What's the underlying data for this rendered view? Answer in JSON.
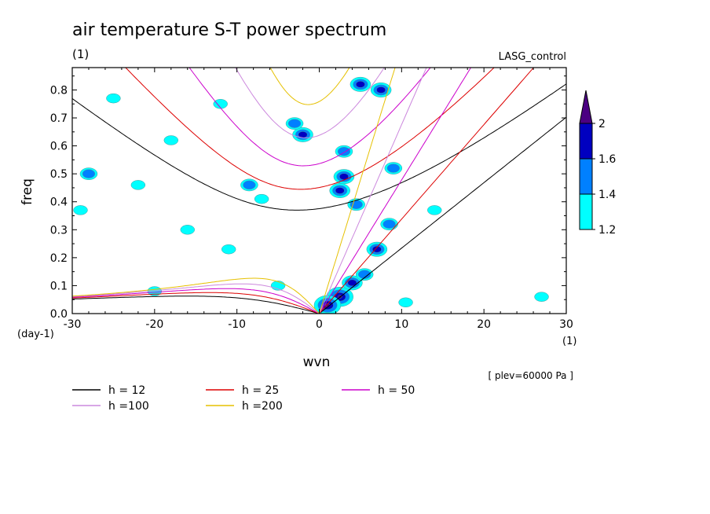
{
  "chart_data": {
    "type": "contour",
    "title": "air temperature S-T power spectrum",
    "units_label": "(1)",
    "run_label": "LASG_control",
    "xlabel": "wvn",
    "ylabel": "freq",
    "x_units": "(1)",
    "y_units": "(day-1)",
    "level_note": "[ plev=60000 Pa ]",
    "xlim": [
      -30,
      30
    ],
    "ylim": [
      0,
      0.88
    ],
    "x_ticks": [
      -30,
      -20,
      -10,
      0,
      10,
      20,
      30
    ],
    "x_tick_labels": [
      "-30",
      "-20",
      "-10",
      "0",
      "10",
      "20",
      "30"
    ],
    "y_ticks": [
      0,
      0.1,
      0.2,
      0.3,
      0.4,
      0.5,
      0.6,
      0.7,
      0.8
    ],
    "y_tick_labels": [
      "0.0",
      "0.1",
      "0.2",
      "0.3",
      "0.4",
      "0.5",
      "0.6",
      "0.7",
      "0.8"
    ],
    "colorbar": {
      "levels": [
        1.2,
        1.4,
        1.6,
        2
      ],
      "labels": [
        "1.2",
        "1.4",
        "1.6",
        "2"
      ],
      "colors": [
        "#00ffff",
        "#0080ff",
        "#0000c0",
        "#4b0082"
      ]
    },
    "dispersion_curves": [
      {
        "label": "h = 12",
        "h": 12,
        "color": "#000000"
      },
      {
        "label": "h = 25",
        "h": 25,
        "color": "#dd0000"
      },
      {
        "label": "h = 50",
        "h": 50,
        "color": "#cc00cc"
      },
      {
        "label": "h =100",
        "h": 100,
        "color": "#cc88dd"
      },
      {
        "label": "h =200",
        "h": 200,
        "color": "#e6c000"
      }
    ],
    "power_blobs": [
      {
        "x": 2.5,
        "y": 0.06,
        "level": 2
      },
      {
        "x": 1.0,
        "y": 0.03,
        "level": 2
      },
      {
        "x": 4.0,
        "y": 0.11,
        "level": 1.6
      },
      {
        "x": 5.5,
        "y": 0.14,
        "level": 1.4
      },
      {
        "x": 7.0,
        "y": 0.23,
        "level": 1.6
      },
      {
        "x": 8.5,
        "y": 0.32,
        "level": 1.4
      },
      {
        "x": 2.5,
        "y": 0.44,
        "level": 1.6
      },
      {
        "x": 3.0,
        "y": 0.49,
        "level": 1.6
      },
      {
        "x": 4.5,
        "y": 0.39,
        "level": 1.4
      },
      {
        "x": 3.0,
        "y": 0.58,
        "level": 1.4
      },
      {
        "x": -2.0,
        "y": 0.64,
        "level": 1.6
      },
      {
        "x": -3.0,
        "y": 0.68,
        "level": 1.4
      },
      {
        "x": 5.0,
        "y": 0.82,
        "level": 1.6
      },
      {
        "x": 7.5,
        "y": 0.8,
        "level": 1.6
      },
      {
        "x": 9.0,
        "y": 0.52,
        "level": 1.4
      },
      {
        "x": -8.5,
        "y": 0.46,
        "level": 1.4
      },
      {
        "x": -7.0,
        "y": 0.41,
        "level": 1.2
      },
      {
        "x": -22.0,
        "y": 0.46,
        "level": 1.2
      },
      {
        "x": -28.0,
        "y": 0.5,
        "level": 1.4
      },
      {
        "x": -11.0,
        "y": 0.23,
        "level": 1.2
      },
      {
        "x": -25.0,
        "y": 0.77,
        "level": 1.2
      },
      {
        "x": -12.0,
        "y": 0.75,
        "level": 1.2
      },
      {
        "x": -18.0,
        "y": 0.62,
        "level": 1.2
      },
      {
        "x": 14.0,
        "y": 0.37,
        "level": 1.2
      },
      {
        "x": -16.0,
        "y": 0.3,
        "level": 1.2
      },
      {
        "x": -5.0,
        "y": 0.1,
        "level": 1.2
      },
      {
        "x": -29.0,
        "y": 0.37,
        "level": 1.2
      },
      {
        "x": 27.0,
        "y": 0.06,
        "level": 1.2
      },
      {
        "x": 10.5,
        "y": 0.04,
        "level": 1.2
      },
      {
        "x": -20.0,
        "y": 0.08,
        "level": 1.2
      }
    ]
  }
}
